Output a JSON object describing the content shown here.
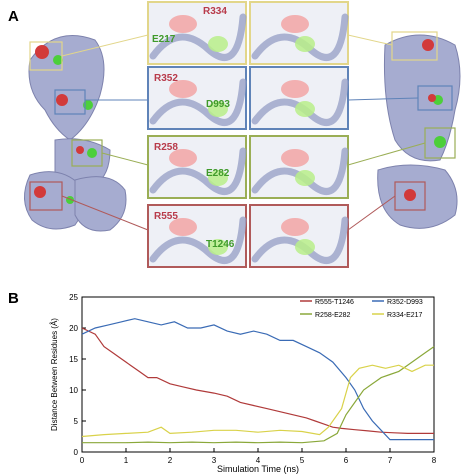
{
  "panel_a": {
    "letter": "A",
    "insets": [
      {
        "left_label": "R334",
        "left_label_2": "E217",
        "border_color": "#e2d68a",
        "label_color": "#b83a4a",
        "label2_color": "#3f9a2a"
      },
      {
        "left_label": "R352",
        "left_label_2": "D993",
        "border_color": "#5f83b8",
        "label_color": "#b83a4a",
        "label2_color": "#3f9a2a"
      },
      {
        "left_label": "R258",
        "left_label_2": "E282",
        "border_color": "#9aae55",
        "label_color": "#b83a4a",
        "label2_color": "#3f9a2a"
      },
      {
        "left_label": "R555",
        "left_label_2": "T1246",
        "border_color": "#b05a5a",
        "label_color": "#b83a4a",
        "label2_color": "#3f9a2a"
      }
    ]
  },
  "panel_b": {
    "letter": "B",
    "chart_data": {
      "type": "line",
      "xlabel": "Simulation Time (ns)",
      "ylabel": "Distance Between Residues (Å)",
      "xlim": [
        0,
        8
      ],
      "ylim": [
        0,
        25
      ],
      "xticks": [
        "0",
        "1",
        "2",
        "3",
        "4",
        "5",
        "6",
        "7",
        "8"
      ],
      "yticks": [
        "0",
        "5",
        "10",
        "15",
        "20",
        "25"
      ],
      "legend_placement": "top-right",
      "series": [
        {
          "name": "R555-T1246",
          "color": "#b03a3a",
          "x": [
            0,
            0.3,
            0.5,
            0.7,
            0.9,
            1.1,
            1.3,
            1.5,
            1.7,
            2.0,
            2.3,
            2.6,
            3.0,
            3.3,
            3.6,
            3.9,
            4.2,
            4.5,
            4.8,
            5.1,
            5.3,
            5.5,
            5.7,
            5.9,
            6.2,
            6.5,
            6.8,
            7.1,
            7.4,
            7.7,
            8.0
          ],
          "y": [
            20,
            19,
            17,
            16,
            15,
            14,
            13,
            12,
            12,
            11,
            10.5,
            10,
            9.5,
            9,
            8,
            7.5,
            7,
            6.5,
            6,
            5.5,
            5,
            4.5,
            4,
            3.8,
            3.6,
            3.4,
            3.2,
            3.1,
            3,
            3,
            3
          ]
        },
        {
          "name": "R352-D993",
          "color": "#3a6bb5",
          "x": [
            0,
            0.3,
            0.6,
            0.9,
            1.2,
            1.5,
            1.8,
            2.1,
            2.4,
            2.7,
            3.0,
            3.3,
            3.6,
            3.9,
            4.2,
            4.5,
            4.8,
            5.1,
            5.4,
            5.7,
            6.0,
            6.2,
            6.4,
            6.6,
            6.8,
            7.0,
            7.2,
            7.5,
            7.8,
            8.0
          ],
          "y": [
            19,
            20,
            20.5,
            21,
            21.5,
            21,
            20.5,
            21,
            20,
            20,
            20.5,
            19.5,
            19,
            19.5,
            19,
            18,
            18,
            17,
            16,
            14.5,
            12,
            10,
            7,
            5,
            3.5,
            2,
            2,
            2,
            2,
            2
          ]
        },
        {
          "name": "R258-E282",
          "color": "#8aa83a",
          "x": [
            0,
            0.5,
            1.0,
            1.5,
            2.0,
            2.5,
            3.0,
            3.5,
            4.0,
            4.5,
            5.0,
            5.5,
            5.8,
            6.0,
            6.2,
            6.4,
            6.6,
            6.8,
            7.0,
            7.2,
            7.4,
            7.6,
            7.8,
            8.0
          ],
          "y": [
            1.5,
            1.5,
            1.5,
            1.6,
            1.5,
            1.6,
            1.5,
            1.6,
            1.5,
            1.6,
            1.5,
            1.8,
            3,
            6,
            8,
            10,
            11,
            12,
            12.5,
            13,
            14,
            15,
            16,
            17
          ]
        },
        {
          "name": "R334-E217",
          "color": "#d9d24a",
          "x": [
            0,
            0.5,
            1.0,
            1.5,
            1.8,
            2.0,
            2.5,
            3.0,
            3.5,
            4.0,
            4.5,
            5.0,
            5.4,
            5.6,
            5.9,
            6.1,
            6.3,
            6.6,
            6.9,
            7.2,
            7.5,
            7.8,
            8.0
          ],
          "y": [
            2.5,
            2.8,
            3,
            3.2,
            4,
            3,
            3.2,
            3.5,
            3.5,
            3.2,
            3.5,
            3.3,
            2.8,
            4,
            7,
            12,
            13.5,
            14,
            13.5,
            14,
            13,
            14,
            14
          ]
        }
      ]
    }
  }
}
